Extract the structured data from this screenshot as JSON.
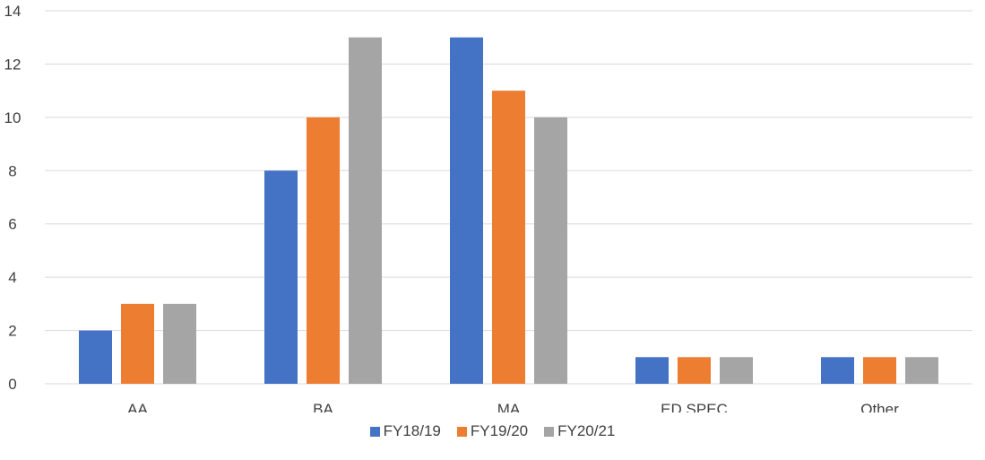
{
  "chart_data": {
    "type": "bar",
    "categories": [
      "AA",
      "BA",
      "MA",
      "ED SPEC",
      "Other"
    ],
    "series": [
      {
        "name": "FY18/19",
        "values": [
          2,
          8,
          13,
          1,
          1
        ],
        "color": "#4472C4"
      },
      {
        "name": "FY19/20",
        "values": [
          3,
          10,
          11,
          1,
          1
        ],
        "color": "#ED7D31"
      },
      {
        "name": "FY20/21",
        "values": [
          3,
          13,
          10,
          1,
          1
        ],
        "color": "#A5A5A5"
      }
    ],
    "y_ticks": [
      "0",
      "2",
      "4",
      "6",
      "8",
      "10",
      "12",
      "14"
    ],
    "ylim": [
      0,
      14
    ],
    "grid": true,
    "legend_position": "bottom",
    "gridline_color": "#D9D9D9"
  }
}
